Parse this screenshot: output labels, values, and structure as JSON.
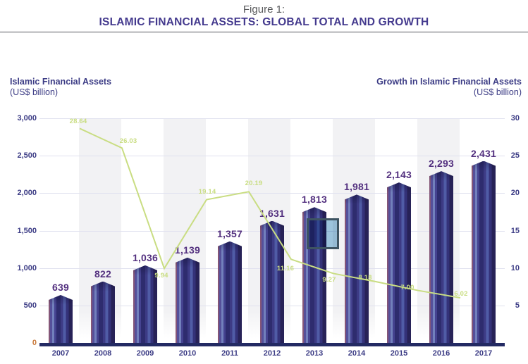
{
  "figure": {
    "label": "Figure 1:",
    "title": "ISLAMIC FINANCIAL ASSETS: GLOBAL TOTAL AND GROWTH"
  },
  "left_axis": {
    "title": "Islamic Financial Assets",
    "subtitle": "(US$ billion)",
    "ticks": [
      "3,000",
      "2,500",
      "2,000",
      "1,500",
      "1,000",
      "500",
      "0"
    ]
  },
  "right_axis": {
    "title": "Growth in Islamic Financial Assets",
    "subtitle": "(US$ billion)",
    "ticks": [
      "30",
      "25",
      "20",
      "15",
      "10",
      "5"
    ]
  },
  "chart_data": {
    "type": "bar+line",
    "title": "ISLAMIC FINANCIAL ASSETS: GLOBAL TOTAL AND GROWTH",
    "categories": [
      "2007",
      "2008",
      "2009",
      "2010",
      "2011",
      "2012",
      "2013",
      "2014",
      "2015",
      "2016",
      "2017"
    ],
    "series": [
      {
        "name": "Islamic Financial Assets (US$ billion)",
        "type": "bar",
        "values": [
          639,
          822,
          1036,
          1139,
          1357,
          1631,
          1813,
          1981,
          2143,
          2293,
          2431
        ],
        "labels": [
          "639",
          "822",
          "1,036",
          "1,139",
          "1,357",
          "1,631",
          "1,813",
          "1,981",
          "2,143",
          "2,293",
          "2,431"
        ]
      },
      {
        "name": "Growth in Islamic Financial Assets",
        "type": "line",
        "x_categories": [
          "2008",
          "2009",
          "2010",
          "2011",
          "2012",
          "2013",
          "2014",
          "2015",
          "2016",
          "2017"
        ],
        "values": [
          28.64,
          26.03,
          9.94,
          19.14,
          20.19,
          11.16,
          9.27,
          8.18,
          7.0,
          6.02
        ],
        "labels": [
          "28.64",
          "26.03",
          "9.94",
          "19.14",
          "20.19",
          "11.16",
          "9.27",
          "8.18",
          "7.00",
          "6.02"
        ]
      }
    ],
    "ylim_left": [
      0,
      3000
    ],
    "ylim_right": [
      0,
      30
    ],
    "grid": true,
    "legend_position": "none",
    "band_highlight_categories": [
      "2008",
      "2010",
      "2012",
      "2014",
      "2016"
    ]
  },
  "annotation": {
    "type": "selection-rectangle",
    "near_category": "2013"
  },
  "colors": {
    "title_purple": "#443a8e",
    "figure_label_gray": "#58595b",
    "axis_text_indigo": "#3c3c85",
    "bar_value_purple": "#53307f",
    "growth_line_green": "#c9dd82",
    "gridline": "#e0e1ef",
    "category_band": "#f2f2f4",
    "baseline_navy": "#232a63",
    "zero_tick_orange": "#c97a3c",
    "selection_border": "#3e5462",
    "selection_fill": "#9cc3dc"
  }
}
